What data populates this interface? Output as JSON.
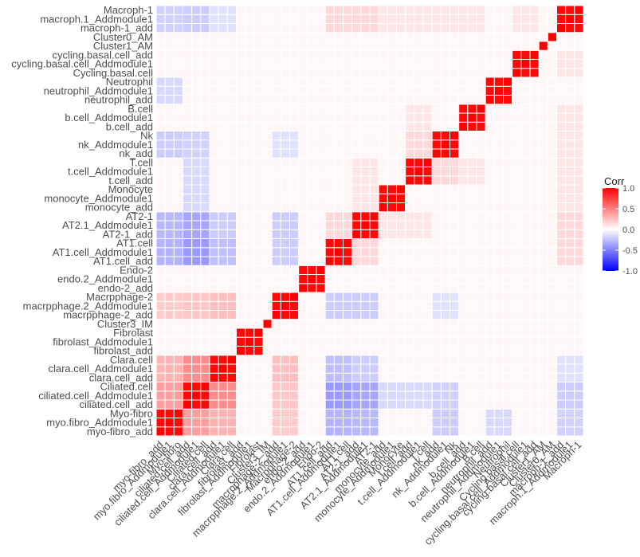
{
  "chart_data": {
    "type": "heatmap",
    "title": "",
    "xlabel": "",
    "ylabel": "",
    "variables_bottom_to_top": [
      "myo-fibro_add",
      "myo.fibro_Addmodule1",
      "Myo-fibro",
      "ciliated.cell_add",
      "ciliated.cell_Addmodule1",
      "Ciliated.cell",
      "clara.cell_add",
      "clara.cell_Addmodule1",
      "Clara.cell",
      "fibrolast_add",
      "fibrolast_Addmodule1",
      "Fibrolast",
      "Cluster3_IM",
      "macrpphage-2_add",
      "macrpphage.2_Addmodule1",
      "Macrpphage-2",
      "endo-2_add",
      "endo.2_Addmodule1",
      "Endo-2",
      "AT1.cell_add",
      "AT1.cell_Addmodule1",
      "AT1.cell",
      "AT2-1_add",
      "AT2.1_Addmodule1",
      "AT2-1",
      "monocyte_add",
      "monocyte_Addmodule1",
      "Monocyte",
      "t.cell_add",
      "t.cell_Addmodule1",
      "T.cell",
      "nk_add",
      "nk_Addmodule1",
      "Nk",
      "b.cell_add",
      "b.cell_Addmodule1",
      "B.cell",
      "neutrophil_add",
      "neutrophil_Addmodule1",
      "Neutrophil",
      "Cycling.basal.cell",
      "cycling.basal.cell_Addmodule1",
      "cycling.basal.cell_add",
      "Cluster1_AM",
      "Cluster0_AM",
      "macroph-1_add",
      "macroph.1_Addmodule1",
      "Macroph-1"
    ],
    "groups": [
      {
        "name": "myo-fibro",
        "size": 3,
        "within_corr": 0.97
      },
      {
        "name": "ciliated.cell",
        "size": 3,
        "within_corr": 0.97
      },
      {
        "name": "clara.cell",
        "size": 3,
        "within_corr": 0.97
      },
      {
        "name": "fibrolast",
        "size": 3,
        "within_corr": 0.97
      },
      {
        "name": "Cluster3_IM",
        "size": 1,
        "within_corr": 1.0
      },
      {
        "name": "macrpphage-2",
        "size": 3,
        "within_corr": 0.97
      },
      {
        "name": "endo-2",
        "size": 3,
        "within_corr": 0.97
      },
      {
        "name": "AT1.cell",
        "size": 3,
        "within_corr": 0.97
      },
      {
        "name": "AT2-1",
        "size": 3,
        "within_corr": 0.97
      },
      {
        "name": "monocyte",
        "size": 3,
        "within_corr": 0.97
      },
      {
        "name": "t.cell",
        "size": 3,
        "within_corr": 0.97
      },
      {
        "name": "nk",
        "size": 3,
        "within_corr": 0.97
      },
      {
        "name": "b.cell",
        "size": 3,
        "within_corr": 0.97
      },
      {
        "name": "neutrophil",
        "size": 3,
        "within_corr": 0.97
      },
      {
        "name": "cycling.basal.cell",
        "size": 3,
        "within_corr": 0.97
      },
      {
        "name": "Cluster1_AM",
        "size": 1,
        "within_corr": 1.0
      },
      {
        "name": "Cluster0_AM",
        "size": 1,
        "within_corr": 1.0
      },
      {
        "name": "macroph-1",
        "size": 3,
        "within_corr": 0.97
      }
    ],
    "between_group_corr": {
      "myo-fibro|ciliated.cell": 0.38,
      "myo-fibro|clara.cell": 0.3,
      "ciliated.cell|clara.cell": 0.45,
      "myo-fibro|AT1.cell": -0.3,
      "myo-fibro|AT2-1": -0.28,
      "ciliated.cell|AT1.cell": -0.4,
      "ciliated.cell|AT2-1": -0.35,
      "ciliated.cell|monocyte": -0.15,
      "ciliated.cell|t.cell": -0.15,
      "ciliated.cell|nk": -0.18,
      "clara.cell|AT1.cell": -0.25,
      "clara.cell|AT2-1": -0.2,
      "myo-fibro|macrpphage-2": 0.2,
      "ciliated.cell|macrpphage-2": 0.22,
      "clara.cell|macrpphage-2": 0.25,
      "myo-fibro|macroph-1": -0.18,
      "ciliated.cell|macroph-1": -0.2,
      "clara.cell|macroph-1": -0.12,
      "myo-fibro|nk": -0.2,
      "myo-fibro|neutrophil": -0.15,
      "AT1.cell|AT2-1": 0.15,
      "AT2-1|monocyte": 0.1,
      "AT2-1|t.cell": 0.1,
      "AT1.cell|macroph-1": 0.15,
      "AT2-1|macroph-1": 0.15,
      "macrpphage-2|AT1.cell": -0.2,
      "macrpphage-2|AT2-1": -0.2,
      "macrpphage-2|nk": -0.12,
      "nk|t.cell": 0.15,
      "b.cell|t.cell": 0.1,
      "macroph-1|cycling.basal.cell": 0.1,
      "macroph-1|nk": 0.1,
      "macroph-1|t.cell": 0.1,
      "macroph-1|b.cell": 0.1,
      "macroph-1|monocyte": 0.1
    },
    "legend": {
      "title": "Corr",
      "position": "right",
      "colors": [
        "#0000ff",
        "#ffffff",
        "#ff0000"
      ],
      "ticks": [
        1.0,
        0.5,
        0.0,
        -0.5,
        -1.0
      ],
      "tick_labels": [
        "1.0",
        "0.5",
        "0.0",
        "-0.5",
        "-1.0"
      ],
      "range": [
        -1,
        1
      ]
    },
    "grid": false
  }
}
